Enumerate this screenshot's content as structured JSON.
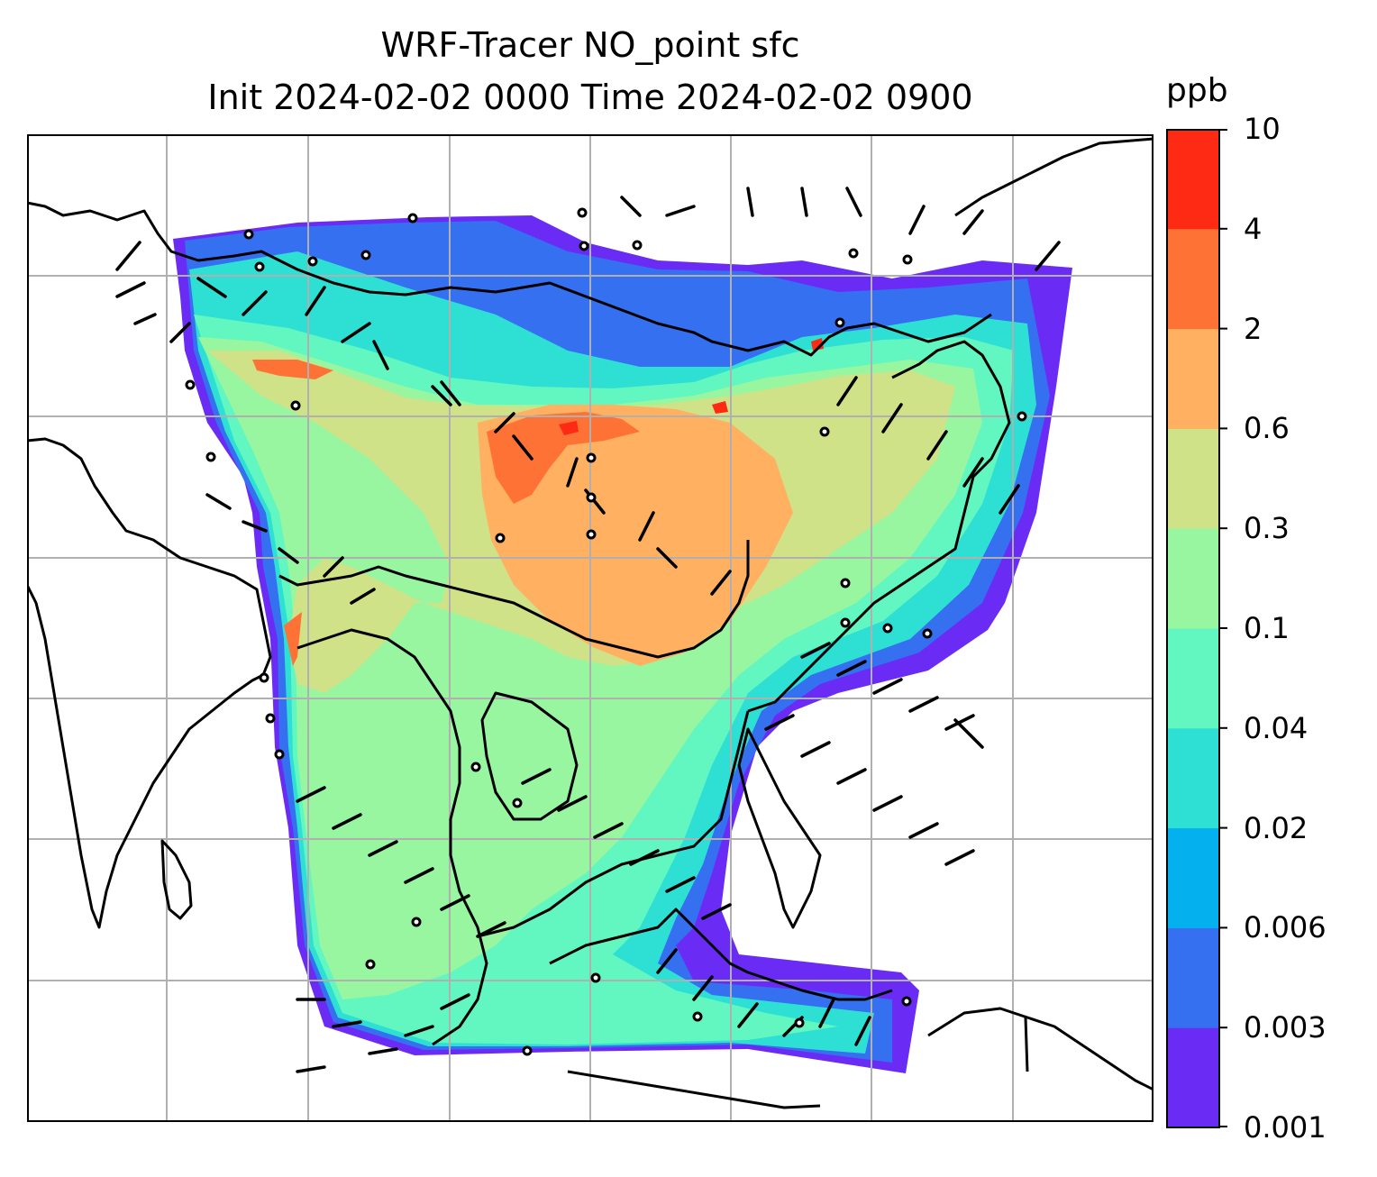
{
  "title": {
    "line1": "WRF-Tracer NO_point sfc",
    "line2": "Init 2024-02-02 0000 Time 2024-02-02 0900"
  },
  "colorbar": {
    "unit": "ppb",
    "ticks": [
      "0.001",
      "0.003",
      "0.006",
      "0.02",
      "0.04",
      "0.1",
      "0.3",
      "0.6",
      "2",
      "4",
      "10"
    ],
    "colors": [
      "#6a2cf5",
      "#3470f0",
      "#05b0ee",
      "#2ee0d4",
      "#62f6c0",
      "#98f6a0",
      "#cfe288",
      "#ffb060",
      "#ff7236",
      "#ff2a14"
    ]
  },
  "map": {
    "gridlines": true,
    "coastline_color": "#000000",
    "grid_color": "#b0b0b0"
  }
}
